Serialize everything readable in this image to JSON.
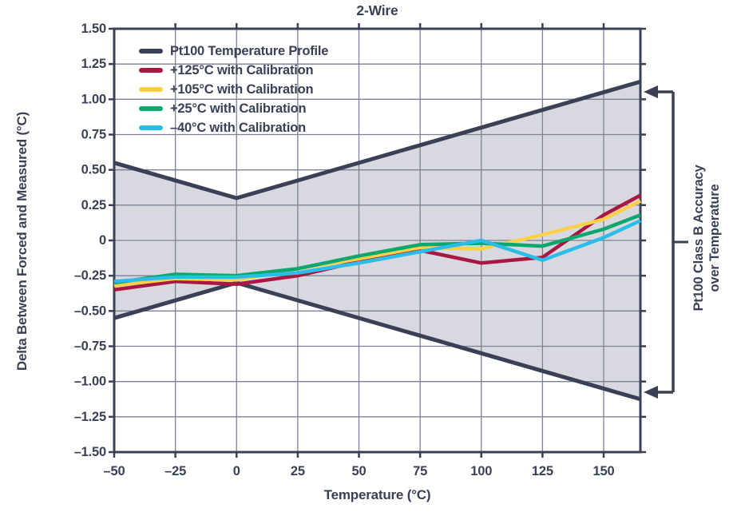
{
  "chart_data": {
    "type": "line",
    "title": "2-Wire",
    "xlabel": "Temperature (°C)",
    "ylabel": "Delta Between Forced and Measured (°C)",
    "xlim": [
      -50,
      165
    ],
    "ylim": [
      -1.5,
      1.5
    ],
    "grid": true,
    "x_ticks": [
      -50,
      -25,
      0,
      25,
      50,
      75,
      100,
      125,
      150
    ],
    "x_tick_labels": [
      "–50",
      "–25",
      "0",
      "25",
      "50",
      "75",
      "100",
      "125",
      "150"
    ],
    "y_ticks": [
      1.5,
      1.25,
      1.0,
      0.75,
      0.5,
      0.25,
      0,
      -0.25,
      -0.5,
      -0.75,
      -1.0,
      -1.25,
      -1.5
    ],
    "y_tick_labels": [
      "1.50",
      "1.25",
      "1.00",
      "0.75",
      "0.50",
      "0.25",
      "0",
      "–0.25",
      "–0.50",
      "–0.75",
      "–1.00",
      "–1.25",
      "–1.50"
    ],
    "colors": {
      "axis": "#3a4156",
      "grid": "#7c8294",
      "text": "#3a4156",
      "band_fill": "#d8d9e0",
      "navy": "#3a4156",
      "red": "#a81842",
      "yellow": "#fdd04a",
      "green": "#0ba76c",
      "cyan": "#2cbce8"
    },
    "legend_position": "top-left-inside",
    "legend": [
      {
        "label": "Pt100 Temperature Profile",
        "color": "#3a4156"
      },
      {
        "label": "+125°C with Calibration",
        "color": "#a81842"
      },
      {
        "label": "+105°C with Calibration",
        "color": "#fdd04a"
      },
      {
        "label": "+25°C with Calibration",
        "color": "#0ba76c"
      },
      {
        "label": "–40°C with Calibration",
        "color": "#2cbce8"
      }
    ],
    "band": {
      "description": "Pt100 Class B accuracy envelope, delta = ±(0.30 + 0.005·|t|)",
      "fill": "#d8d9e0"
    },
    "series": [
      {
        "name": "Pt100 Temperature Profile (upper bound)",
        "role": "envelope-upper",
        "color": "#3a4156",
        "width": 5,
        "x": [
          -50,
          0,
          165
        ],
        "y": [
          0.55,
          0.3,
          1.125
        ]
      },
      {
        "name": "Pt100 Temperature Profile (lower bound)",
        "role": "envelope-lower",
        "color": "#3a4156",
        "width": 5,
        "x": [
          -50,
          0,
          165
        ],
        "y": [
          -0.55,
          -0.3,
          -1.125
        ]
      },
      {
        "name": "+125°C with Calibration",
        "role": "data",
        "color": "#a81842",
        "width": 4.5,
        "x": [
          -50,
          -25,
          0,
          25,
          50,
          75,
          100,
          125,
          150,
          165
        ],
        "y": [
          -0.35,
          -0.29,
          -0.31,
          -0.25,
          -0.15,
          -0.07,
          -0.16,
          -0.12,
          0.18,
          0.32
        ]
      },
      {
        "name": "+105°C with Calibration",
        "role": "data",
        "color": "#fdd04a",
        "width": 4.5,
        "x": [
          -50,
          -25,
          0,
          25,
          50,
          75,
          100,
          125,
          150,
          165
        ],
        "y": [
          -0.32,
          -0.27,
          -0.28,
          -0.2,
          -0.13,
          -0.05,
          -0.06,
          0.04,
          0.15,
          0.28
        ]
      },
      {
        "name": "+25°C with Calibration",
        "role": "data",
        "color": "#0ba76c",
        "width": 4.5,
        "x": [
          -50,
          -25,
          0,
          25,
          50,
          75,
          100,
          125,
          150,
          165
        ],
        "y": [
          -0.3,
          -0.24,
          -0.25,
          -0.2,
          -0.11,
          -0.03,
          -0.02,
          -0.04,
          0.08,
          0.18
        ]
      },
      {
        "name": "–40°C with Calibration",
        "role": "data",
        "color": "#2cbce8",
        "width": 4.5,
        "x": [
          -50,
          -25,
          0,
          25,
          50,
          75,
          100,
          125,
          150,
          165
        ],
        "y": [
          -0.29,
          -0.26,
          -0.26,
          -0.23,
          -0.16,
          -0.08,
          0.0,
          -0.14,
          0.02,
          0.14
        ]
      }
    ],
    "annotation": {
      "line1": "Pt100 Class B Accuracy",
      "line2": "over Temperature",
      "points_to": "envelope bounds at right edge"
    }
  }
}
